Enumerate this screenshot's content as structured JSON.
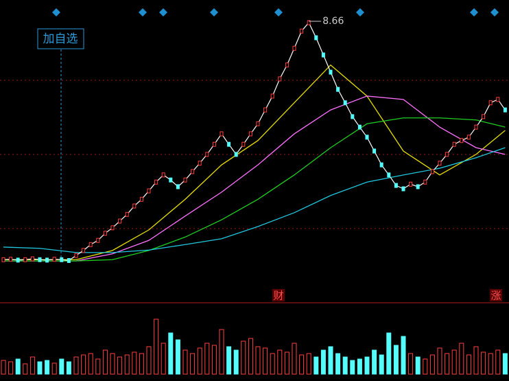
{
  "chart_data": [
    {
      "type": "line",
      "categories": [
        null,
        null,
        null,
        null,
        null,
        null,
        null,
        null,
        null,
        null,
        null,
        null,
        null,
        null,
        null,
        null,
        null,
        null,
        null,
        null,
        null,
        null,
        null,
        null,
        null,
        null,
        null,
        null,
        null,
        null,
        null,
        null,
        null,
        null,
        null,
        null,
        null,
        null,
        null,
        null,
        null,
        null,
        null,
        null,
        null,
        null,
        null,
        null,
        null,
        null,
        null,
        null,
        null,
        null,
        null,
        null,
        null,
        null,
        null,
        null,
        null,
        null,
        null,
        null,
        null,
        null,
        null,
        null,
        null,
        null
      ],
      "values": [
        3.01,
        3.02,
        3.0,
        3.01,
        3.03,
        3.01,
        3.0,
        3.02,
        3.01,
        2.99,
        3.11,
        3.23,
        3.37,
        3.47,
        3.64,
        3.77,
        3.93,
        4.09,
        4.29,
        4.45,
        4.65,
        4.86,
        5.03,
        4.91,
        4.75,
        4.91,
        5.11,
        5.31,
        5.52,
        5.76,
        6.01,
        5.76,
        5.52,
        5.76,
        6.01,
        6.25,
        6.58,
        6.91,
        7.32,
        7.65,
        8.05,
        8.46,
        8.66,
        8.3,
        7.89,
        7.48,
        7.07,
        6.75,
        6.42,
        6.17,
        5.93,
        5.6,
        5.27,
        5.03,
        4.78,
        4.7,
        4.81,
        4.75,
        4.86,
        5.11,
        5.31,
        5.52,
        5.76,
        5.85,
        5.93,
        6.17,
        6.42,
        6.75,
        6.83,
        6.58
      ],
      "color": "#ffffff",
      "up_color": "#ff4040",
      "down_color": "#54fcfc",
      "series": [
        {
          "color": "#e8e000",
          "x": [
            0,
            5,
            10,
            15,
            20,
            25,
            30,
            35,
            40,
            45,
            50,
            55,
            60,
            65,
            69
          ],
          "values": [
            3.01,
            3.01,
            3.01,
            3.23,
            3.72,
            4.45,
            5.27,
            5.85,
            6.75,
            7.65,
            6.91,
            5.6,
            5.03,
            5.52,
            6.09
          ]
        },
        {
          "color": "#ff70ff",
          "x": [
            0,
            5,
            10,
            15,
            20,
            25,
            30,
            35,
            40,
            45,
            50,
            55,
            60,
            65,
            69
          ],
          "values": [
            2.98,
            2.98,
            2.98,
            3.15,
            3.47,
            4.05,
            4.62,
            5.27,
            6.01,
            6.58,
            6.91,
            6.83,
            6.17,
            5.68,
            5.52
          ]
        },
        {
          "color": "#20d020",
          "x": [
            0,
            5,
            10,
            15,
            20,
            25,
            30,
            35,
            40,
            45,
            50,
            55,
            60,
            65,
            69
          ],
          "values": [
            2.98,
            2.98,
            2.98,
            3.01,
            3.23,
            3.55,
            3.96,
            4.45,
            5.03,
            5.68,
            6.25,
            6.39,
            6.39,
            6.34,
            6.17
          ]
        },
        {
          "color": "#20c8e0",
          "x": [
            0,
            5,
            10,
            15,
            20,
            25,
            30,
            35,
            40,
            45,
            50,
            55,
            60,
            65,
            69
          ],
          "values": [
            3.31,
            3.28,
            3.18,
            3.18,
            3.24,
            3.37,
            3.51,
            3.8,
            4.13,
            4.54,
            4.86,
            5.03,
            5.19,
            5.44,
            5.68
          ]
        }
      ],
      "ylim": [
        2.0,
        9.2
      ],
      "max_label": 8.66,
      "annotations": {
        "add_watchlist": "加自选",
        "finance": "财",
        "rise": "涨"
      }
    },
    {
      "type": "bar",
      "values": [
        20,
        18,
        22,
        15,
        25,
        18,
        20,
        16,
        22,
        18,
        25,
        28,
        30,
        22,
        35,
        30,
        25,
        28,
        32,
        30,
        40,
        80,
        45,
        60,
        50,
        35,
        30,
        38,
        45,
        42,
        65,
        40,
        35,
        48,
        52,
        40,
        38,
        30,
        35,
        32,
        45,
        28,
        30,
        25,
        35,
        40,
        30,
        25,
        20,
        22,
        25,
        35,
        28,
        60,
        42,
        55,
        30,
        25,
        22,
        28,
        38,
        30,
        35,
        45,
        28,
        40,
        32,
        30,
        35,
        30
      ],
      "ylim": [
        0,
        100
      ]
    }
  ]
}
